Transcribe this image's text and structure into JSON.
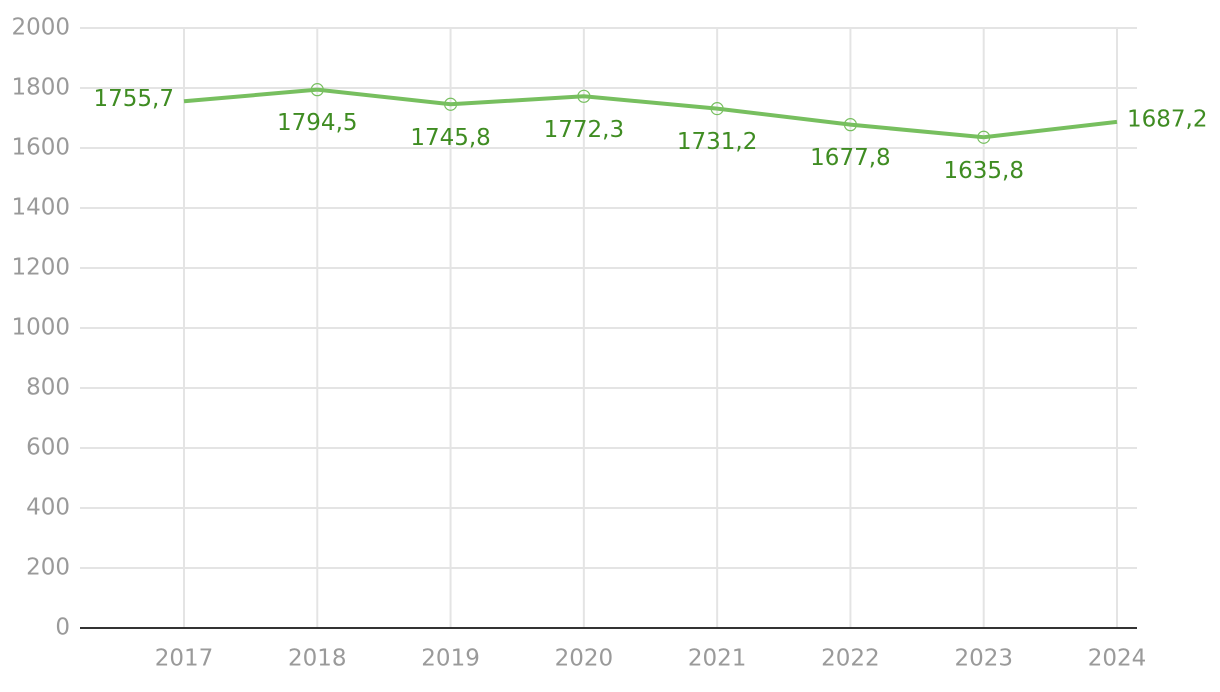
{
  "chart_data": {
    "type": "line",
    "categories": [
      "2017",
      "2018",
      "2019",
      "2020",
      "2021",
      "2022",
      "2023",
      "2024"
    ],
    "series": [
      {
        "color": "#77bf5f",
        "label_color": "#3f8c22",
        "values": [
          1755.7,
          1794.5,
          1745.8,
          1772.3,
          1731.2,
          1677.8,
          1635.8,
          1687.2
        ],
        "value_labels": [
          "1755,7",
          "1794,5",
          "1745,8",
          "1772,3",
          "1731,2",
          "1677,8",
          "1635,8",
          "1687,2"
        ]
      }
    ],
    "ylim": [
      0,
      2000
    ],
    "yticks": [
      0,
      200,
      400,
      600,
      800,
      1000,
      1200,
      1400,
      1600,
      1800,
      2000
    ],
    "grid": true
  }
}
